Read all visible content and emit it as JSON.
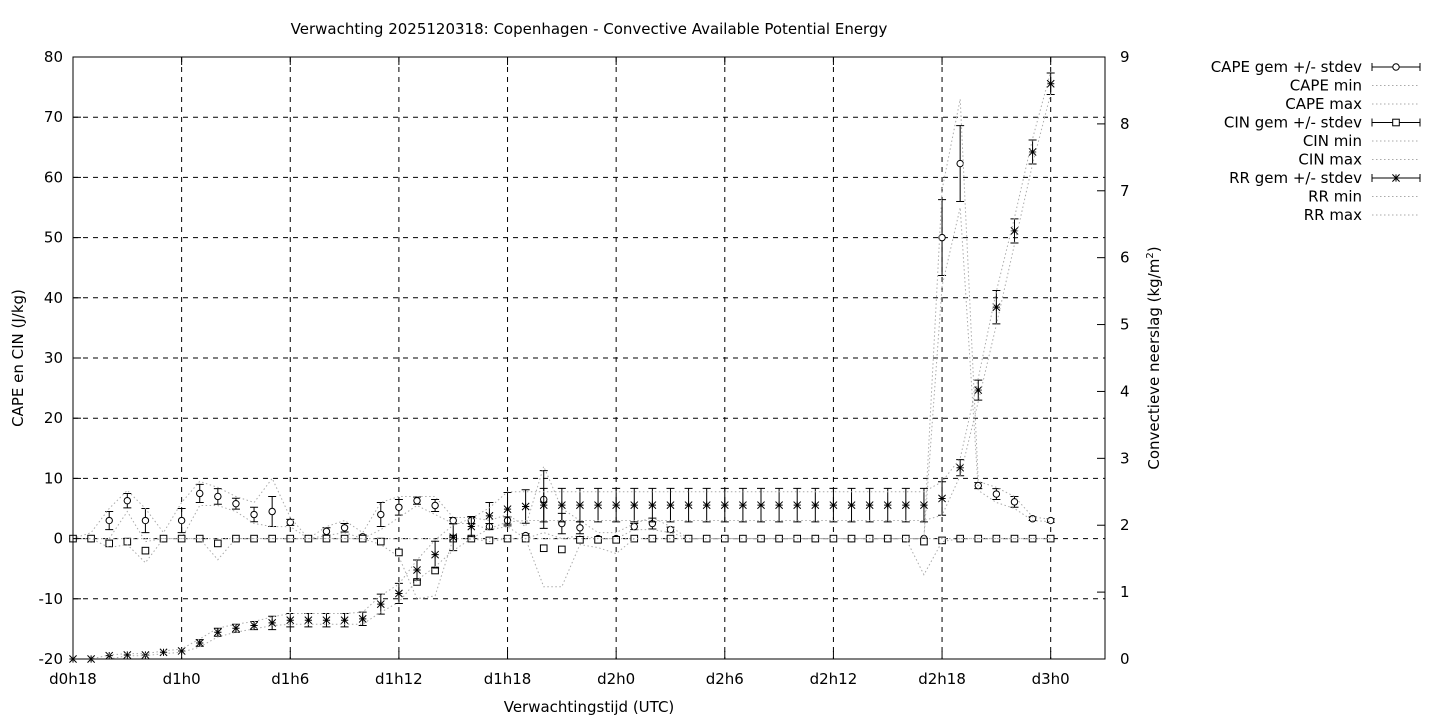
{
  "chart_data": {
    "type": "line",
    "title": "Verwachting 2025120318: Copenhagen - Convective Available Potential Energy",
    "xlabel": "Verwachtingstijd (UTC)",
    "ylabel": "CAPE en CIN (J/kg)",
    "y2label": "Convectieve neerslag (kg/m",
    "y2label_sup": "2",
    "y2label_end": ")",
    "xlim": [
      18,
      75
    ],
    "ylim": [
      -20,
      80
    ],
    "y2lim": [
      0,
      9
    ],
    "grid": true,
    "legend_placement": "outside-right",
    "x_ticks": [
      {
        "x": 18,
        "label": "d0h18"
      },
      {
        "x": 24,
        "label": "d1h0"
      },
      {
        "x": 30,
        "label": "d1h6"
      },
      {
        "x": 36,
        "label": "d1h12"
      },
      {
        "x": 42,
        "label": "d1h18"
      },
      {
        "x": 48,
        "label": "d2h0"
      },
      {
        "x": 54,
        "label": "d2h6"
      },
      {
        "x": 60,
        "label": "d2h12"
      },
      {
        "x": 66,
        "label": "d2h18"
      },
      {
        "x": 72,
        "label": "d3h0"
      }
    ],
    "y_ticks": [
      "-20",
      "-10",
      "0",
      "10",
      "20",
      "30",
      "40",
      "50",
      "60",
      "70",
      "80"
    ],
    "y2_ticks": [
      "0",
      "1",
      "2",
      "3",
      "4",
      "5",
      "6",
      "7",
      "8",
      "9"
    ],
    "x": [
      18,
      19,
      20,
      21,
      22,
      23,
      24,
      25,
      26,
      27,
      28,
      29,
      30,
      31,
      32,
      33,
      34,
      35,
      36,
      37,
      38,
      39,
      40,
      41,
      42,
      43,
      44,
      45,
      46,
      47,
      48,
      49,
      50,
      51,
      52,
      53,
      54,
      55,
      56,
      57,
      58,
      59,
      60,
      61,
      62,
      63,
      64,
      65,
      66,
      67,
      68,
      69,
      70,
      71,
      72
    ],
    "series": [
      {
        "name": "CAPE gem +/- stdev",
        "axis": "y1",
        "marker": "circle",
        "values": [
          0,
          0,
          3,
          6.3,
          3,
          0,
          3,
          7.5,
          7,
          5.8,
          4,
          4.5,
          2.7,
          0,
          1.2,
          1.8,
          0.3,
          4,
          5.2,
          6.3,
          5.5,
          3,
          3,
          2,
          3,
          0.5,
          6.5,
          2.5,
          1.8,
          0,
          0,
          2,
          2.5,
          1.5,
          0,
          0,
          0,
          0,
          0,
          0,
          0,
          0,
          0,
          0,
          0,
          0,
          0,
          0,
          50,
          62.3,
          8.8,
          7.4,
          6.1,
          3.3,
          3
        ],
        "stdev": [
          0,
          0,
          1.5,
          1.2,
          2,
          0,
          2,
          1.5,
          1.3,
          0.9,
          1.2,
          2.5,
          0.5,
          0,
          0.6,
          0.7,
          0.3,
          2,
          1.3,
          0.6,
          1,
          0.5,
          0.5,
          0.5,
          0.6,
          0.3,
          4.8,
          1.7,
          1,
          0,
          0,
          0.5,
          0.9,
          0.4,
          0,
          0,
          0,
          0,
          0,
          0,
          0,
          0,
          0,
          0,
          0,
          0,
          0,
          0,
          6.3,
          6.3,
          0.5,
          0.9,
          0.9,
          0.3,
          0.3
        ]
      },
      {
        "name": "CAPE min",
        "axis": "y1",
        "style": "dotted",
        "values": [
          0,
          0,
          0,
          4.5,
          -0.5,
          0,
          0,
          5.5,
          5.5,
          4.5,
          2.5,
          2,
          2,
          0,
          0.5,
          1,
          0,
          1.5,
          3.5,
          5.5,
          4,
          2.5,
          2.5,
          1.5,
          2,
          0,
          1,
          0,
          0.5,
          0,
          0,
          1.5,
          1.5,
          1,
          0,
          0,
          0,
          0,
          0,
          0,
          0,
          0,
          0,
          0,
          0,
          0,
          0,
          0,
          42,
          55,
          8,
          6,
          5,
          3,
          2.8
        ]
      },
      {
        "name": "CAPE max",
        "axis": "y1",
        "style": "dotted",
        "values": [
          0,
          1,
          5,
          8,
          5,
          1,
          6,
          9.5,
          8.5,
          7,
          6,
          10,
          3.5,
          0,
          2,
          3,
          1,
          6,
          7,
          7,
          7,
          3.5,
          3.5,
          3,
          4,
          2,
          12,
          5,
          3,
          1,
          1,
          2.5,
          3.5,
          2,
          0,
          0,
          0,
          0,
          0,
          0,
          0,
          0,
          0,
          0,
          0,
          0,
          0,
          0,
          58,
          73,
          9.5,
          8.5,
          7,
          3.6,
          3.2
        ]
      },
      {
        "name": "CIN gem +/- stdev",
        "axis": "y1",
        "marker": "square",
        "values": [
          0,
          0,
          -0.8,
          -0.5,
          -2,
          0,
          0,
          0,
          -0.8,
          0,
          0,
          0,
          0,
          0,
          0,
          0,
          0,
          -0.5,
          -2.3,
          -7.2,
          -5.3,
          0,
          0,
          -0.3,
          0,
          0,
          -1.6,
          -1.8,
          -0.2,
          -0.2,
          -0.2,
          0,
          0,
          0,
          0,
          0,
          0,
          0,
          0,
          0,
          0,
          0,
          0,
          0,
          0,
          0,
          0,
          -0.5,
          -0.3,
          0,
          0,
          0,
          0,
          0,
          0
        ]
      },
      {
        "name": "CIN min",
        "axis": "y1",
        "style": "dotted",
        "values": [
          0,
          0,
          -1.5,
          -1,
          -4,
          0,
          0,
          0,
          -3.5,
          0,
          0,
          0,
          0,
          0,
          0,
          0,
          0,
          -1,
          -3,
          -10,
          -9.5,
          0,
          0,
          -0.5,
          0,
          0,
          -8,
          -8,
          -1,
          -1.5,
          -2.5,
          0,
          0,
          0,
          0,
          0,
          0,
          0,
          0,
          0,
          0,
          0,
          0,
          0,
          0,
          0,
          0,
          -6,
          -0.5,
          0,
          0,
          0,
          0,
          0,
          0
        ]
      },
      {
        "name": "CIN max",
        "axis": "y1",
        "style": "dotted",
        "values": [
          0,
          0,
          0,
          0,
          0,
          0,
          0,
          0,
          0,
          0,
          0,
          0,
          0,
          0,
          0,
          0,
          0,
          0,
          0,
          0,
          0,
          0,
          0,
          0,
          0,
          0,
          0,
          0,
          0,
          0,
          0,
          0,
          0,
          0,
          0,
          0,
          0,
          0,
          0,
          0,
          0,
          0,
          0,
          0,
          0,
          0,
          0,
          0,
          0,
          0,
          0,
          0,
          0,
          0,
          0
        ]
      },
      {
        "name": "RR gem +/- stdev",
        "axis": "y2",
        "marker": "star",
        "values": [
          0,
          0,
          0.05,
          0.06,
          0.06,
          0.1,
          0.12,
          0.24,
          0.4,
          0.46,
          0.5,
          0.54,
          0.58,
          0.58,
          0.58,
          0.58,
          0.6,
          0.82,
          0.98,
          1.33,
          1.56,
          1.82,
          1.98,
          2.14,
          2.24,
          2.28,
          2.3,
          2.3,
          2.3,
          2.3,
          2.3,
          2.3,
          2.3,
          2.3,
          2.3,
          2.3,
          2.3,
          2.3,
          2.3,
          2.3,
          2.3,
          2.3,
          2.3,
          2.3,
          2.3,
          2.3,
          2.3,
          2.3,
          2.4,
          2.86,
          4.02,
          5.26,
          6.4,
          7.58,
          8.6
        ],
        "stdev": [
          0,
          0,
          0,
          0,
          0,
          0,
          0,
          0.05,
          0.06,
          0.06,
          0.06,
          0.1,
          0.1,
          0.1,
          0.1,
          0.1,
          0.1,
          0.15,
          0.15,
          0.15,
          0.2,
          0.2,
          0.15,
          0.2,
          0.25,
          0.25,
          0.25,
          0.25,
          0.25,
          0.25,
          0.25,
          0.25,
          0.25,
          0.25,
          0.25,
          0.25,
          0.25,
          0.25,
          0.25,
          0.25,
          0.25,
          0.25,
          0.25,
          0.25,
          0.25,
          0.25,
          0.25,
          0.25,
          0.25,
          0.12,
          0.15,
          0.25,
          0.18,
          0.18,
          0.16
        ]
      },
      {
        "name": "RR min",
        "axis": "y2",
        "style": "dotted",
        "values": [
          0,
          0,
          0,
          0.05,
          0.05,
          0.08,
          0.1,
          0.18,
          0.33,
          0.4,
          0.45,
          0.5,
          0.52,
          0.52,
          0.52,
          0.52,
          0.52,
          0.7,
          0.85,
          1.18,
          1.38,
          1.62,
          1.8,
          1.95,
          2.05,
          2.07,
          2.07,
          2.07,
          2.07,
          2.07,
          2.07,
          2.07,
          2.07,
          2.07,
          2.07,
          2.07,
          2.07,
          2.07,
          2.07,
          2.07,
          2.07,
          2.07,
          2.07,
          2.07,
          2.07,
          2.07,
          2.07,
          2.07,
          2.15,
          2.74,
          3.85,
          5.0,
          6.2,
          7.4,
          8.45
        ]
      },
      {
        "name": "RR max",
        "axis": "y2",
        "style": "dotted",
        "values": [
          0,
          0,
          0.06,
          0.08,
          0.08,
          0.12,
          0.15,
          0.3,
          0.46,
          0.52,
          0.56,
          0.63,
          0.68,
          0.68,
          0.68,
          0.68,
          0.7,
          0.95,
          1.12,
          1.48,
          1.78,
          2.0,
          2.1,
          2.26,
          2.5,
          2.5,
          2.5,
          2.5,
          2.5,
          2.5,
          2.5,
          2.5,
          2.5,
          2.5,
          2.5,
          2.5,
          2.5,
          2.5,
          2.5,
          2.5,
          2.5,
          2.5,
          2.5,
          2.5,
          2.5,
          2.5,
          2.5,
          2.5,
          2.65,
          3.0,
          4.2,
          5.5,
          6.6,
          7.78,
          8.78
        ]
      }
    ]
  }
}
